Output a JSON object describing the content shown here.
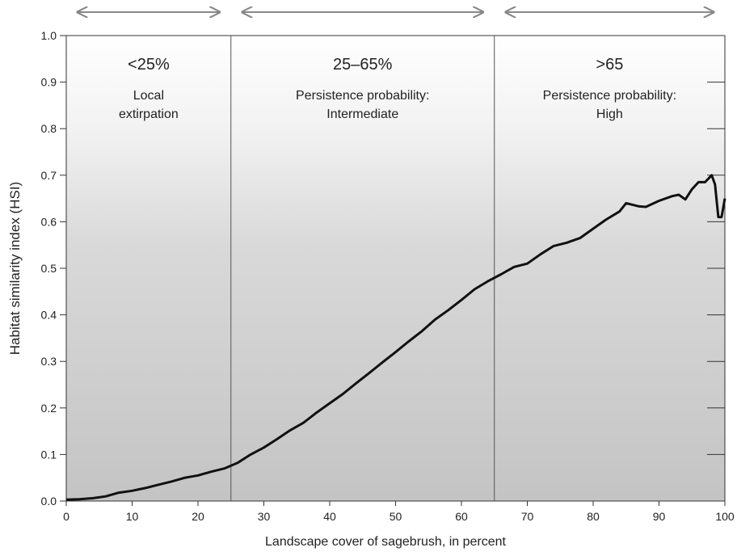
{
  "chart_data": {
    "type": "line",
    "x_label": "Landscape cover of sagebrush, in percent",
    "y_label": "Habitat similarity index (HSI)",
    "xlim": [
      0,
      100
    ],
    "ylim": [
      0,
      1
    ],
    "xticks": [
      0,
      10,
      20,
      30,
      40,
      50,
      60,
      70,
      80,
      90,
      100
    ],
    "yticks": [
      {
        "value": 0,
        "label": "0.0"
      },
      0.1,
      0.2,
      0.3,
      0.4,
      0.5,
      0.6,
      0.7,
      0.8,
      0.9,
      {
        "value": 1,
        "label": "1.0"
      }
    ],
    "dividers": [
      25,
      65
    ],
    "regions": [
      {
        "heading": "<25%",
        "lines": [
          "Local",
          "extirpation"
        ]
      },
      {
        "heading": "25–65%",
        "lines": [
          "Persistence probability:",
          "Intermediate"
        ]
      },
      {
        "heading": ">65",
        "lines": [
          "Persistence probability:",
          "High"
        ]
      }
    ],
    "series": [
      {
        "color": "#111111",
        "x": [
          0,
          2,
          4,
          6,
          8,
          10,
          12,
          14,
          16,
          18,
          20,
          22,
          24,
          26,
          28,
          30,
          32,
          34,
          36,
          38,
          40,
          42,
          44,
          46,
          48,
          50,
          52,
          54,
          56,
          58,
          60,
          62,
          64,
          66,
          68,
          70,
          72,
          74,
          76,
          78,
          80,
          82,
          84,
          85,
          87,
          88,
          90,
          92,
          93,
          94,
          95,
          96,
          97,
          98,
          98.5,
          99,
          99.5,
          100
        ],
        "values": [
          0.003,
          0.004,
          0.006,
          0.01,
          0.018,
          0.022,
          0.028,
          0.035,
          0.042,
          0.05,
          0.055,
          0.063,
          0.07,
          0.082,
          0.1,
          0.115,
          0.133,
          0.152,
          0.168,
          0.19,
          0.21,
          0.23,
          0.253,
          0.275,
          0.298,
          0.32,
          0.343,
          0.365,
          0.39,
          0.41,
          0.432,
          0.455,
          0.472,
          0.487,
          0.503,
          0.51,
          0.53,
          0.548,
          0.555,
          0.565,
          0.585,
          0.605,
          0.622,
          0.64,
          0.633,
          0.632,
          0.645,
          0.655,
          0.658,
          0.648,
          0.67,
          0.685,
          0.685,
          0.7,
          0.68,
          0.61,
          0.61,
          0.65
        ]
      }
    ]
  }
}
